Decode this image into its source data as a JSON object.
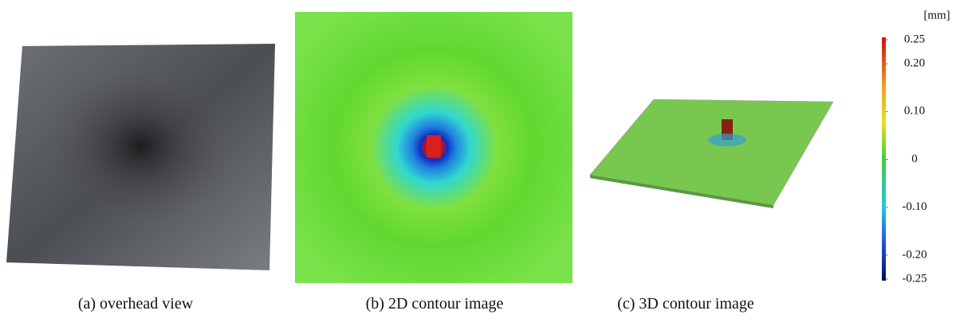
{
  "panels": [
    {
      "caption": "(a) overhead view"
    },
    {
      "caption": "(b) 2D contour image"
    },
    {
      "caption": "(c) 3D contour image"
    }
  ],
  "colorbar": {
    "unit": "[mm]",
    "ticks": [
      {
        "value": 0.25,
        "label": "0.25"
      },
      {
        "value": 0.2,
        "label": "0.20"
      },
      {
        "value": 0.1,
        "label": "0.10"
      },
      0,
      {
        "value": -0.1,
        "label": "-0.10"
      },
      {
        "value": -0.2,
        "label": "-0.20"
      },
      {
        "value": -0.25,
        "label": "-0.25"
      }
    ]
  }
}
